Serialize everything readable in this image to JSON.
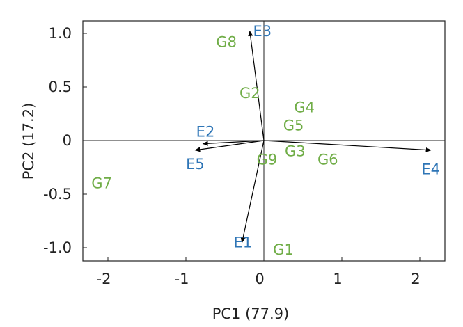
{
  "chart_data": {
    "type": "scatter",
    "subtype": "biplot",
    "title": "",
    "xlabel": "PC1 (77.9)",
    "ylabel": "PC2 (17.2)",
    "xlim": [
      -2.3,
      2.4
    ],
    "ylim": [
      -1.15,
      1.15
    ],
    "xticks": [
      -2,
      -1,
      0,
      1,
      2
    ],
    "xtick_labels": [
      "-2",
      "-1",
      "0",
      "1",
      "2"
    ],
    "yticks": [
      -1.0,
      -0.5,
      0,
      0.5,
      1.0
    ],
    "ytick_labels": [
      "-1.0",
      "-0.5",
      "0",
      "0.5",
      "1.0"
    ],
    "grid": false,
    "reference_lines": {
      "x": 0,
      "y": 0
    },
    "colors": {
      "genotype": "#70ad47",
      "environment": "#2e75b6",
      "axis": "#222222"
    },
    "genotypes": [
      {
        "label": "G1",
        "x": 0.25,
        "y": -1.02
      },
      {
        "label": "G2",
        "x": -0.18,
        "y": 0.44
      },
      {
        "label": "G3",
        "x": 0.4,
        "y": -0.1
      },
      {
        "label": "G4",
        "x": 0.52,
        "y": 0.31
      },
      {
        "label": "G5",
        "x": 0.38,
        "y": 0.14
      },
      {
        "label": "G6",
        "x": 0.82,
        "y": -0.18
      },
      {
        "label": "G7",
        "x": -2.08,
        "y": -0.4
      },
      {
        "label": "G8",
        "x": -0.48,
        "y": 0.92
      },
      {
        "label": "G9",
        "x": 0.04,
        "y": -0.18
      }
    ],
    "environments": [
      {
        "label": "E1",
        "x": -0.28,
        "y": -0.95,
        "label_x": -0.27,
        "label_y": -0.95
      },
      {
        "label": "E2",
        "x": -0.78,
        "y": -0.03,
        "label_x": -0.75,
        "label_y": 0.08
      },
      {
        "label": "E3",
        "x": -0.18,
        "y": 1.02,
        "label_x": -0.02,
        "label_y": 1.02
      },
      {
        "label": "E4",
        "x": 2.14,
        "y": -0.09,
        "label_x": 2.14,
        "label_y": -0.27
      },
      {
        "label": "E5",
        "x": -0.88,
        "y": -0.09,
        "label_x": -0.88,
        "label_y": -0.22
      }
    ]
  }
}
